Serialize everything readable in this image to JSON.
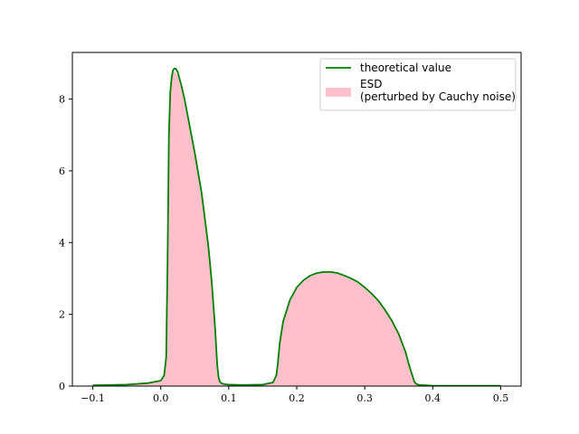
{
  "chart_data": {
    "type": "area",
    "title": "",
    "xlabel": "",
    "ylabel": "",
    "xlim": [
      -0.13,
      0.53
    ],
    "ylim": [
      0,
      9.3
    ],
    "xticks": [
      -0.1,
      0.0,
      0.1,
      0.2,
      0.3,
      0.4,
      0.5
    ],
    "xtick_labels": [
      "−0.1",
      "0.0",
      "0.1",
      "0.2",
      "0.3",
      "0.4",
      "0.5"
    ],
    "yticks": [
      0,
      2,
      4,
      6,
      8
    ],
    "ytick_labels": [
      "0",
      "2",
      "4",
      "6",
      "8"
    ],
    "grid": false,
    "legend_position": "top-right",
    "legend": {
      "line_label": "theoretical value",
      "hist_label_line1": "ESD",
      "hist_label_line2": "(perturbed by Cauchy noise)"
    },
    "series": [
      {
        "name": "theoretical value",
        "kind": "line",
        "color": "#008000",
        "x": [
          -0.1,
          -0.05,
          -0.02,
          0.0,
          0.005,
          0.008,
          0.01,
          0.012,
          0.014,
          0.016,
          0.018,
          0.02,
          0.022,
          0.025,
          0.03,
          0.035,
          0.04,
          0.05,
          0.06,
          0.07,
          0.075,
          0.08,
          0.083,
          0.085,
          0.087,
          0.09,
          0.095,
          0.1,
          0.12,
          0.15,
          0.165,
          0.17,
          0.172,
          0.175,
          0.18,
          0.19,
          0.2,
          0.21,
          0.22,
          0.23,
          0.24,
          0.25,
          0.26,
          0.27,
          0.28,
          0.29,
          0.3,
          0.31,
          0.32,
          0.33,
          0.34,
          0.35,
          0.36,
          0.365,
          0.37,
          0.373,
          0.376,
          0.38,
          0.39,
          0.4,
          0.45,
          0.5
        ],
        "y": [
          0.02,
          0.04,
          0.08,
          0.15,
          0.3,
          0.8,
          3.5,
          7.0,
          8.2,
          8.6,
          8.8,
          8.85,
          8.85,
          8.75,
          8.4,
          8.0,
          7.5,
          6.5,
          5.4,
          3.9,
          2.9,
          1.6,
          0.6,
          0.25,
          0.12,
          0.07,
          0.05,
          0.04,
          0.03,
          0.04,
          0.1,
          0.3,
          0.6,
          1.2,
          1.8,
          2.4,
          2.75,
          2.95,
          3.08,
          3.15,
          3.18,
          3.18,
          3.15,
          3.08,
          3.0,
          2.9,
          2.75,
          2.58,
          2.38,
          2.12,
          1.82,
          1.45,
          0.95,
          0.6,
          0.3,
          0.12,
          0.06,
          0.03,
          0.02,
          0.01,
          0.01,
          0.01
        ]
      },
      {
        "name": "ESD\n(perturbed by Cauchy noise)",
        "kind": "histogram",
        "color": "#ffc0cb",
        "x": [
          -0.1,
          -0.05,
          -0.02,
          0.0,
          0.005,
          0.008,
          0.01,
          0.012,
          0.014,
          0.016,
          0.018,
          0.02,
          0.022,
          0.025,
          0.03,
          0.035,
          0.04,
          0.05,
          0.06,
          0.07,
          0.075,
          0.08,
          0.083,
          0.085,
          0.087,
          0.09,
          0.095,
          0.1,
          0.12,
          0.15,
          0.165,
          0.17,
          0.172,
          0.175,
          0.18,
          0.19,
          0.2,
          0.21,
          0.22,
          0.23,
          0.24,
          0.25,
          0.26,
          0.27,
          0.28,
          0.29,
          0.3,
          0.31,
          0.32,
          0.33,
          0.34,
          0.35,
          0.36,
          0.365,
          0.37,
          0.373,
          0.376,
          0.38,
          0.39,
          0.4,
          0.45,
          0.5
        ],
        "y": [
          0.0,
          0.02,
          0.06,
          0.14,
          0.3,
          0.8,
          3.3,
          6.9,
          8.1,
          8.5,
          8.7,
          8.75,
          8.75,
          8.65,
          8.3,
          7.9,
          7.4,
          6.4,
          5.3,
          3.8,
          2.8,
          1.5,
          0.55,
          0.22,
          0.1,
          0.06,
          0.04,
          0.03,
          0.02,
          0.03,
          0.08,
          0.25,
          0.55,
          1.1,
          1.75,
          2.35,
          2.7,
          2.9,
          3.05,
          3.12,
          3.15,
          3.15,
          3.12,
          3.05,
          2.97,
          2.87,
          2.72,
          2.55,
          2.35,
          2.1,
          1.8,
          1.42,
          0.92,
          0.57,
          0.28,
          0.1,
          0.05,
          0.02,
          0.0,
          0.0,
          0.0,
          0.0
        ]
      }
    ]
  }
}
